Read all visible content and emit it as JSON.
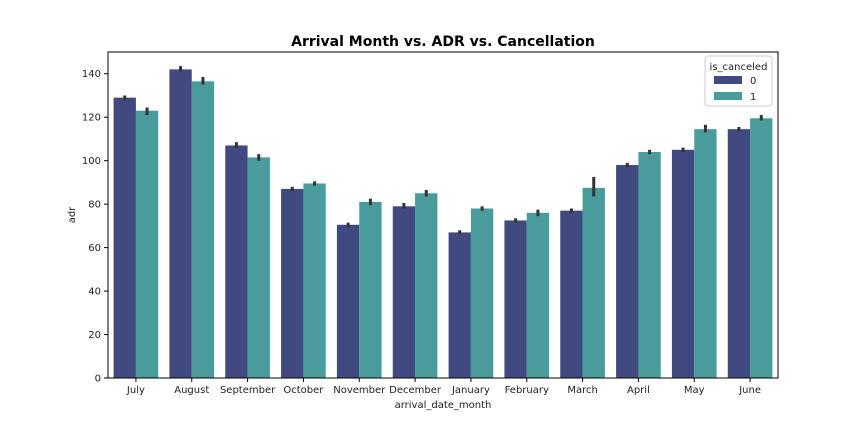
{
  "chart_data": {
    "type": "bar",
    "title": "Arrival Month vs. ADR vs. Cancellation",
    "xlabel": "arrival_date_month",
    "ylabel": "adr",
    "ylim": [
      0,
      150
    ],
    "yticks": [
      0,
      20,
      40,
      60,
      80,
      100,
      120,
      140
    ],
    "categories": [
      "July",
      "August",
      "September",
      "October",
      "November",
      "December",
      "January",
      "February",
      "March",
      "April",
      "May",
      "June"
    ],
    "legend": {
      "title": "is_canceled",
      "placement": "top-right"
    },
    "series": [
      {
        "name": "0",
        "color": "#414a80",
        "values": [
          129,
          142,
          107,
          87,
          70.5,
          79,
          67,
          72.5,
          77,
          98,
          105,
          114.5
        ],
        "ci_low": [
          128,
          141,
          106,
          86,
          69.5,
          78,
          66,
          71.5,
          76,
          97,
          104,
          113.5
        ],
        "ci_high": [
          130,
          143.5,
          108.5,
          88,
          71.5,
          80.5,
          68,
          73.5,
          78,
          99,
          106,
          115.5
        ]
      },
      {
        "name": "1",
        "color": "#4a9b9c",
        "values": [
          123,
          136.5,
          101.5,
          89.5,
          81,
          85,
          78,
          76,
          87.5,
          104,
          114.5,
          119.5
        ],
        "ci_low": [
          121,
          135,
          100,
          88.5,
          79.5,
          83.5,
          77,
          74.5,
          83.5,
          103,
          113,
          118.5
        ],
        "ci_high": [
          124.5,
          138.5,
          103,
          90.5,
          82.5,
          86.5,
          79,
          77.5,
          92.5,
          105,
          116.5,
          121
        ]
      }
    ]
  }
}
